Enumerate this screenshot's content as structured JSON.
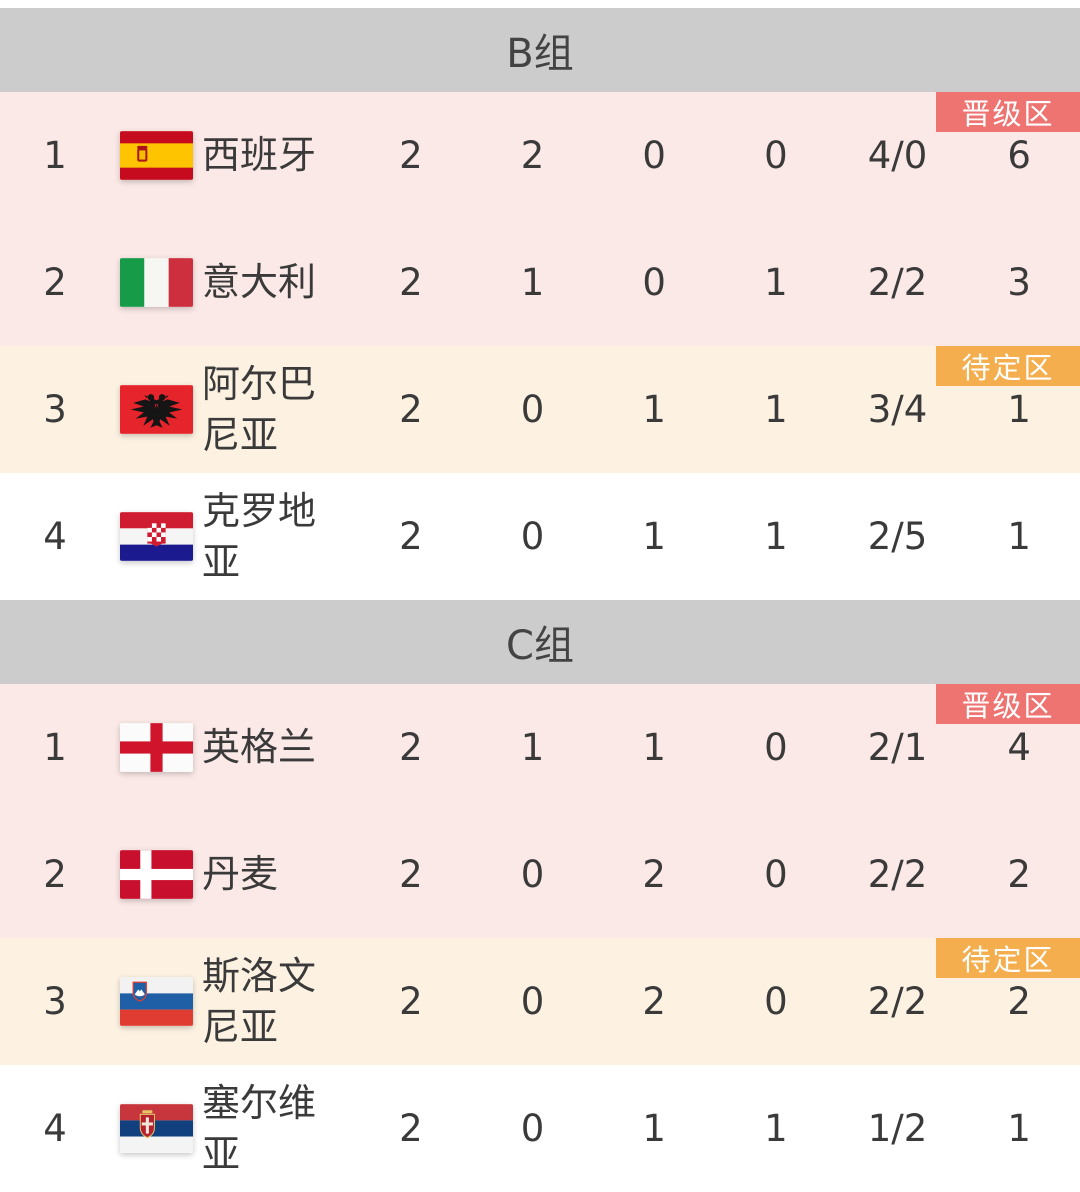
{
  "colors": {
    "header_bg": "#cccccc",
    "row_promote_bg": "#fbe9e7",
    "row_pending_bg": "#fdf2e2",
    "row_out_bg": "#ffffff",
    "badge_promote": "#ed7471",
    "badge_pending": "#f4ae4d",
    "badge_text": "#ffffff",
    "text": "#3a3a3a"
  },
  "zone_labels": {
    "promote": "晋级区",
    "pending": "待定区"
  },
  "groups": [
    {
      "title": "B组",
      "rows": [
        {
          "rank": "1",
          "flag": "spain-flag",
          "team": "西班牙",
          "played": "2",
          "won": "2",
          "drawn": "0",
          "lost": "0",
          "goals": "4/0",
          "points": "6",
          "zone": "promote",
          "zone_badge": "晋级区"
        },
        {
          "rank": "2",
          "flag": "italy-flag",
          "team": "意大利",
          "played": "2",
          "won": "1",
          "drawn": "0",
          "lost": "1",
          "goals": "2/2",
          "points": "3",
          "zone": "promote"
        },
        {
          "rank": "3",
          "flag": "albania-flag",
          "team": "阿尔巴尼亚",
          "played": "2",
          "won": "0",
          "drawn": "1",
          "lost": "1",
          "goals": "3/4",
          "points": "1",
          "zone": "pending",
          "zone_badge": "待定区"
        },
        {
          "rank": "4",
          "flag": "croatia-flag",
          "team": "克罗地亚",
          "played": "2",
          "won": "0",
          "drawn": "1",
          "lost": "1",
          "goals": "2/5",
          "points": "1",
          "zone": "out"
        }
      ]
    },
    {
      "title": "C组",
      "rows": [
        {
          "rank": "1",
          "flag": "england-flag",
          "team": "英格兰",
          "played": "2",
          "won": "1",
          "drawn": "1",
          "lost": "0",
          "goals": "2/1",
          "points": "4",
          "zone": "promote",
          "zone_badge": "晋级区"
        },
        {
          "rank": "2",
          "flag": "denmark-flag",
          "team": "丹麦",
          "played": "2",
          "won": "0",
          "drawn": "2",
          "lost": "0",
          "goals": "2/2",
          "points": "2",
          "zone": "promote"
        },
        {
          "rank": "3",
          "flag": "slovenia-flag",
          "team": "斯洛文尼亚",
          "played": "2",
          "won": "0",
          "drawn": "2",
          "lost": "0",
          "goals": "2/2",
          "points": "2",
          "zone": "pending",
          "zone_badge": "待定区"
        },
        {
          "rank": "4",
          "flag": "serbia-flag",
          "team": "塞尔维亚",
          "played": "2",
          "won": "0",
          "drawn": "1",
          "lost": "1",
          "goals": "1/2",
          "points": "1",
          "zone": "out"
        }
      ]
    }
  ]
}
